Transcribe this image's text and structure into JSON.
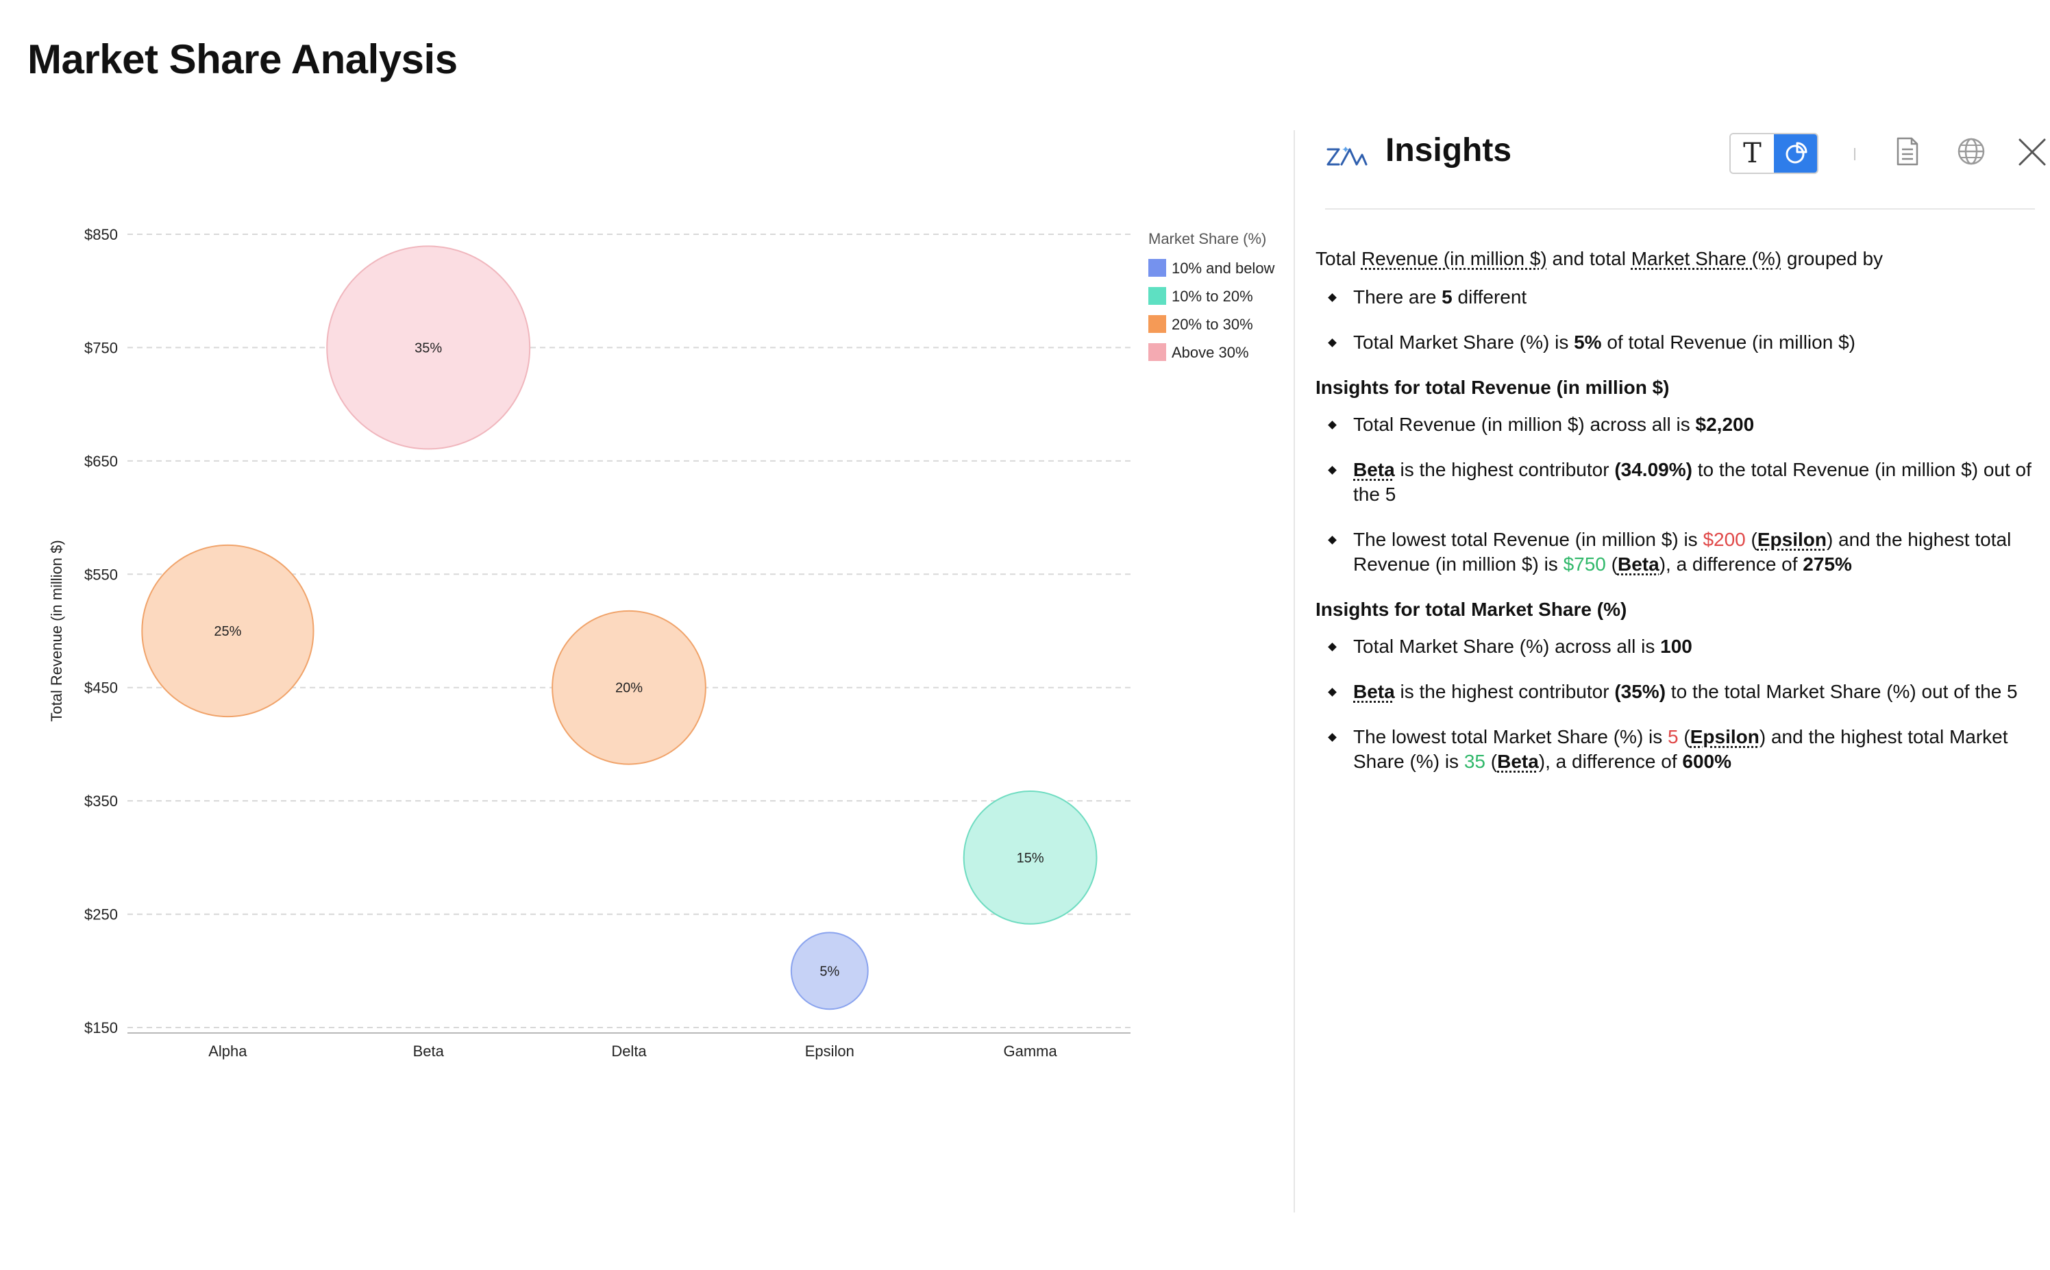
{
  "page": {
    "title": "Market Share Analysis"
  },
  "chart_data": {
    "type": "bubble",
    "categories": [
      "Alpha",
      "Beta",
      "Delta",
      "Epsilon",
      "Gamma"
    ],
    "values": [
      500,
      750,
      450,
      200,
      300
    ],
    "sizes": [
      25,
      35,
      20,
      5,
      15
    ],
    "labels": [
      "25%",
      "35%",
      "20%",
      "5%",
      "15%"
    ],
    "groups": [
      "20% to 30%",
      "Above 30%",
      "20% to 30%",
      "10% and below",
      "10% to 20%"
    ],
    "ylabel": "Total Revenue (in million $)",
    "xlabel": "",
    "ylim": [
      150,
      850
    ],
    "yticks": [
      150,
      250,
      350,
      450,
      550,
      650,
      750,
      850
    ],
    "ytick_labels": [
      "$150",
      "$250",
      "$350",
      "$450",
      "$550",
      "$650",
      "$750",
      "$850"
    ],
    "grid": true,
    "legend": {
      "title": "Market Share (%)",
      "position": "top-right",
      "items": [
        {
          "label": "10% and below",
          "color": "#7592ee"
        },
        {
          "label": "10% to 20%",
          "color": "#5ee0c2"
        },
        {
          "label": "20% to 30%",
          "color": "#f59a56"
        },
        {
          "label": "Above 30%",
          "color": "#f4aab2"
        }
      ]
    },
    "group_styles": {
      "10% and below": {
        "fill": "#c6d2f6",
        "stroke": "#8aa3ee"
      },
      "10% to 20%": {
        "fill": "#c2f3e7",
        "stroke": "#6fdcc1"
      },
      "20% to 30%": {
        "fill": "#fcd9bf",
        "stroke": "#f0a36a"
      },
      "Above 30%": {
        "fill": "#fbdde2",
        "stroke": "#f0b6bd"
      }
    }
  },
  "insights": {
    "title": "Insights",
    "toolbar": {
      "text_view_glyph": "T",
      "chart_view_icon": "pie-chart-icon",
      "document_icon": "document-icon",
      "globe_icon": "globe-icon",
      "close_icon": "close-icon"
    },
    "intro": {
      "t1": "Total ",
      "f1": "Revenue (in million $)",
      "t2": " and total ",
      "f2": "Market Share (%)",
      "t3": " grouped by"
    },
    "summary": {
      "b1_pre": "There are ",
      "b1_num": "5",
      "b1_post": " different",
      "b2_pre": "Total Market Share (%) is ",
      "b2_num": "5%",
      "b2_post": " of total Revenue (in million $)"
    },
    "revenue": {
      "heading": "Insights for total Revenue (in million $)",
      "b1_pre": "Total Revenue (in million $) across all is ",
      "b1_val": "$2,200",
      "b2_name": "Beta",
      "b2_mid": " is the highest contributor ",
      "b2_pct": "(34.09%)",
      "b2_post": " to the total Revenue (in million $) out of the 5",
      "b3_pre": "The lowest total Revenue (in million $) is ",
      "b3_low": "$200",
      "b3_low_name": "Epsilon",
      "b3_mid": " and the highest total Revenue (in million $) is ",
      "b3_high": "$750",
      "b3_high_name": "Beta",
      "b3_post": ", a difference of ",
      "b3_diff": "275%"
    },
    "share": {
      "heading": "Insights for total Market Share (%)",
      "b1_pre": "Total Market Share (%) across all is ",
      "b1_val": "100",
      "b2_name": "Beta",
      "b2_mid": " is the highest contributor ",
      "b2_pct": "(35%)",
      "b2_post": " to the total Market Share (%) out of the 5",
      "b3_pre": "The lowest total Market Share (%) is ",
      "b3_low": "5",
      "b3_low_name": "Epsilon",
      "b3_mid": " and the highest total Market Share (%) is ",
      "b3_high": "35",
      "b3_high_name": "Beta",
      "b3_post": ", a difference of ",
      "b3_diff": "600%"
    }
  }
}
